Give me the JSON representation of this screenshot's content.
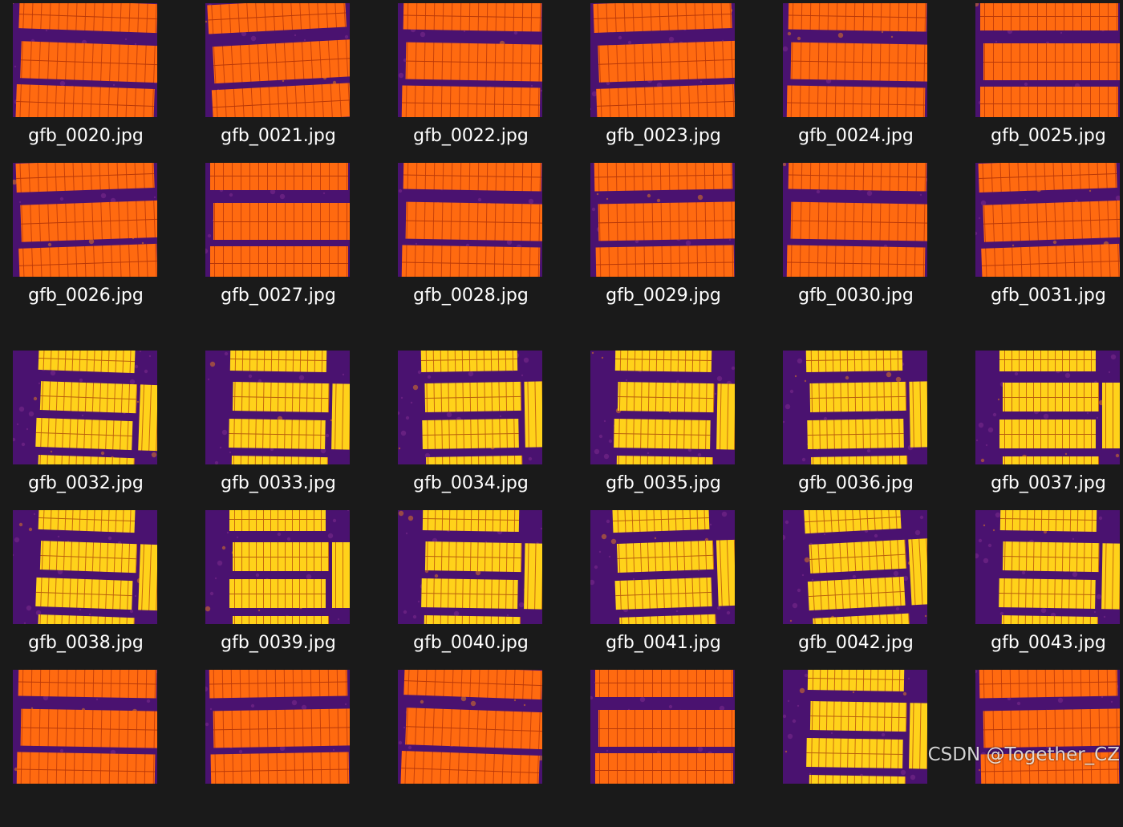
{
  "colors": {
    "background": "#1a1a1a",
    "filename_text": "#ffffff",
    "thermal_cold": "#4a1270",
    "thermal_warm": "#ff6a10",
    "thermal_hot": "#ffd21a"
  },
  "files": [
    {
      "name": "gfb_0020.jpg",
      "palette": "warm",
      "angle": 2
    },
    {
      "name": "gfb_0021.jpg",
      "palette": "warm",
      "angle": -3
    },
    {
      "name": "gfb_0022.jpg",
      "palette": "warm",
      "angle": 1
    },
    {
      "name": "gfb_0023.jpg",
      "palette": "warm",
      "angle": -2
    },
    {
      "name": "gfb_0024.jpg",
      "palette": "warm",
      "angle": 1
    },
    {
      "name": "gfb_0025.jpg",
      "palette": "warm",
      "angle": 0
    },
    {
      "name": "gfb_0026.jpg",
      "palette": "warm",
      "angle": -2
    },
    {
      "name": "gfb_0027.jpg",
      "palette": "warm",
      "angle": 0
    },
    {
      "name": "gfb_0028.jpg",
      "palette": "warm",
      "angle": 1
    },
    {
      "name": "gfb_0029.jpg",
      "palette": "warm",
      "angle": -1
    },
    {
      "name": "gfb_0030.jpg",
      "palette": "warm",
      "angle": 1
    },
    {
      "name": "gfb_0031.jpg",
      "palette": "warm",
      "angle": -2
    },
    {
      "name": "gfb_0032.jpg",
      "palette": "hot",
      "angle": 2
    },
    {
      "name": "gfb_0033.jpg",
      "palette": "hot",
      "angle": 1
    },
    {
      "name": "gfb_0034.jpg",
      "palette": "hot",
      "angle": -1
    },
    {
      "name": "gfb_0035.jpg",
      "palette": "hot",
      "angle": 1
    },
    {
      "name": "gfb_0036.jpg",
      "palette": "hot",
      "angle": -1
    },
    {
      "name": "gfb_0037.jpg",
      "palette": "hot",
      "angle": 0
    },
    {
      "name": "gfb_0038.jpg",
      "palette": "hot",
      "angle": 2
    },
    {
      "name": "gfb_0039.jpg",
      "palette": "hot",
      "angle": 0
    },
    {
      "name": "gfb_0040.jpg",
      "palette": "hot",
      "angle": 1
    },
    {
      "name": "gfb_0041.jpg",
      "palette": "hot",
      "angle": -2
    },
    {
      "name": "gfb_0042.jpg",
      "palette": "hot",
      "angle": -3
    },
    {
      "name": "gfb_0043.jpg",
      "palette": "hot",
      "angle": 1
    },
    {
      "name": "",
      "palette": "warm",
      "angle": 1
    },
    {
      "name": "",
      "palette": "warm",
      "angle": -1
    },
    {
      "name": "",
      "palette": "warm",
      "angle": 2
    },
    {
      "name": "",
      "palette": "warm",
      "angle": 0
    },
    {
      "name": "",
      "palette": "hot",
      "angle": 1
    },
    {
      "name": "",
      "palette": "warm",
      "angle": -1
    }
  ],
  "watermark": "CSDN @Together_CZ"
}
